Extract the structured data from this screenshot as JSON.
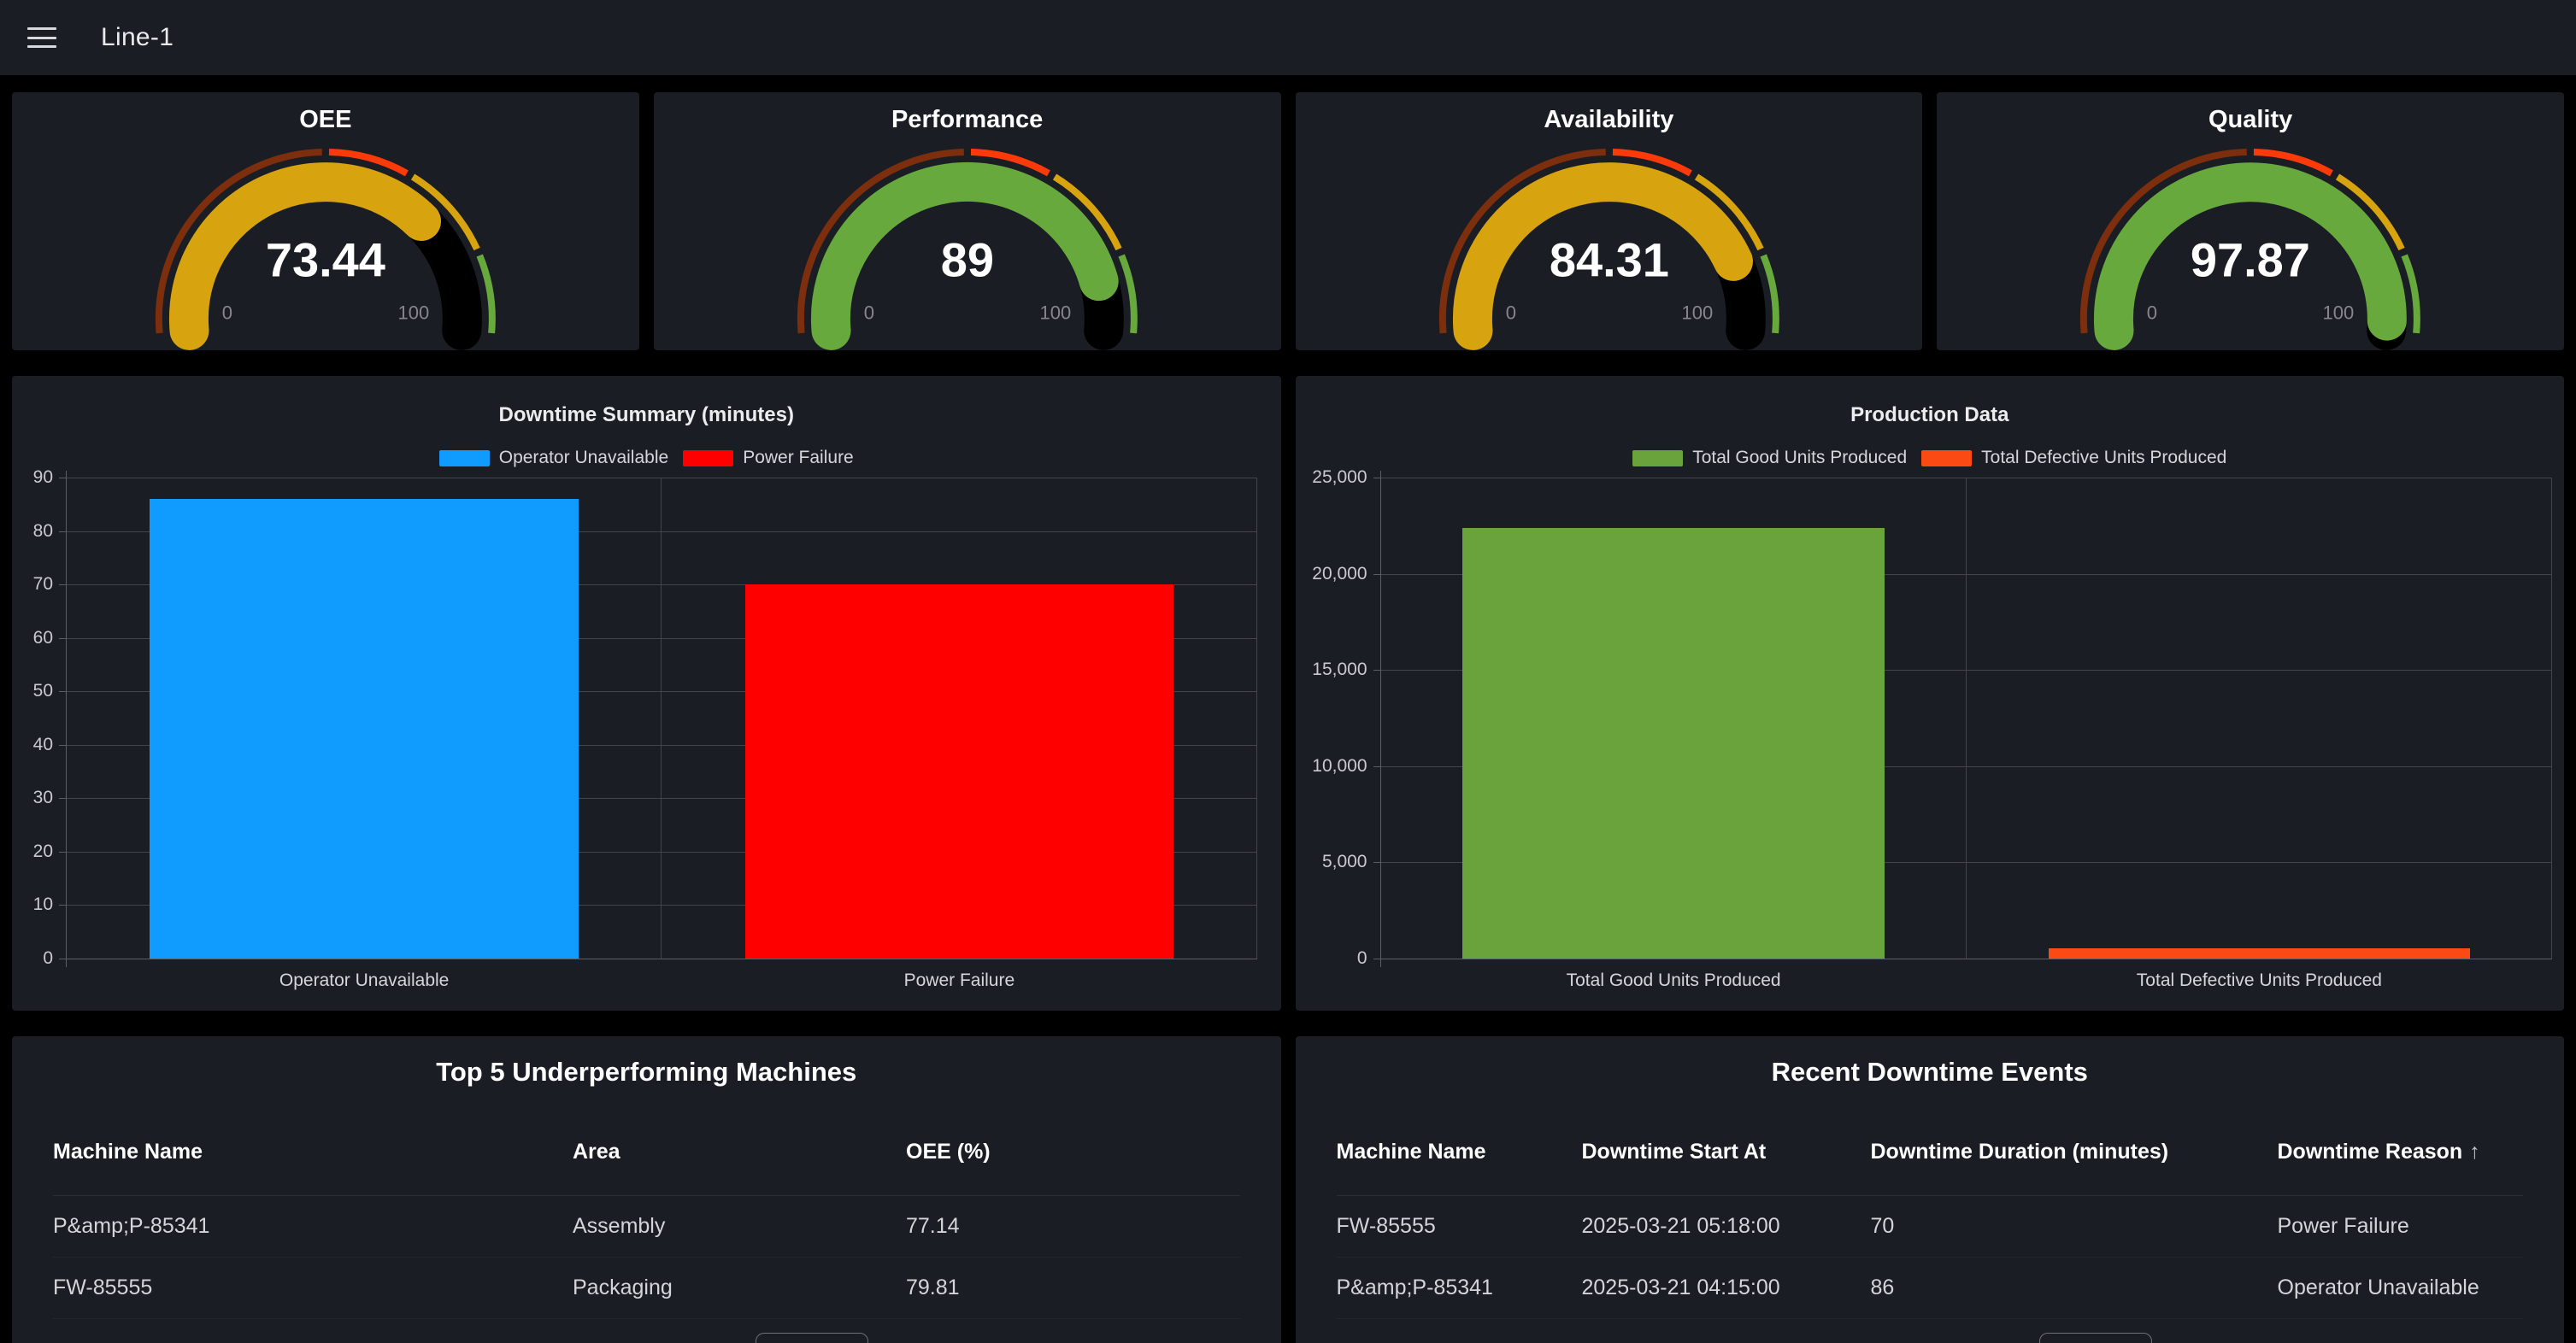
{
  "header": {
    "title": "Line-1",
    "menu_icon": "hamburger-icon"
  },
  "gauge_scale": {
    "min": 0,
    "max": 100,
    "min_label": "0",
    "max_label": "100",
    "thresholds": [
      {
        "from": 0,
        "to": 50,
        "color": "#7c2e0d"
      },
      {
        "from": 50,
        "to": 66,
        "color": "#fb3a0a"
      },
      {
        "from": 66,
        "to": 85,
        "color": "#d7a30f"
      },
      {
        "from": 85,
        "to": 100,
        "color": "#67a93c"
      }
    ]
  },
  "gauges": [
    {
      "title": "OEE",
      "value": 73.44,
      "value_display": "73.44",
      "color": "#d7a30f"
    },
    {
      "title": "Performance",
      "value": 89,
      "value_display": "89",
      "color": "#67a93c"
    },
    {
      "title": "Availability",
      "value": 84.31,
      "value_display": "84.31",
      "color": "#d7a30f"
    },
    {
      "title": "Quality",
      "value": 97.87,
      "value_display": "97.87",
      "color": "#67a93c"
    }
  ],
  "chart_data": [
    {
      "type": "bar",
      "title": "Downtime Summary (minutes)",
      "categories": [
        "Operator Unavailable",
        "Power Failure"
      ],
      "values": [
        86,
        70
      ],
      "bar_colors": [
        "#0f9bff",
        "#ff0000"
      ],
      "legend": [
        {
          "label": "Operator Unavailable",
          "color": "#0f9bff"
        },
        {
          "label": "Power Failure",
          "color": "#ff0000"
        }
      ],
      "ylim": [
        0,
        90
      ],
      "yticks": [
        0,
        10,
        20,
        30,
        40,
        50,
        60,
        70,
        80,
        90
      ],
      "ytick_labels": [
        "0",
        "10",
        "20",
        "30",
        "40",
        "50",
        "60",
        "70",
        "80",
        "90"
      ],
      "grid": true,
      "legend_position": "top"
    },
    {
      "type": "bar",
      "title": "Production Data",
      "categories": [
        "Total Good Units Produced",
        "Total Defective Units Produced"
      ],
      "values": [
        22400,
        550
      ],
      "bar_colors": [
        "#6aa33b",
        "#fb4a14"
      ],
      "legend": [
        {
          "label": "Total Good Units Produced",
          "color": "#6aa33b"
        },
        {
          "label": "Total Defective Units Produced",
          "color": "#fb4a14"
        }
      ],
      "ylim": [
        0,
        25000
      ],
      "yticks": [
        0,
        5000,
        10000,
        15000,
        20000,
        25000
      ],
      "ytick_labels": [
        "0",
        "5,000",
        "10,000",
        "15,000",
        "20,000",
        "25,000"
      ],
      "grid": true,
      "legend_position": "top"
    }
  ],
  "tables": [
    {
      "title": "Top 5 Underperforming Machines",
      "columns": [
        "Machine Name",
        "Area",
        "OEE (%)"
      ],
      "rows": [
        [
          "P&amp;P-85341",
          "Assembly",
          "77.14"
        ],
        [
          "FW-85555",
          "Packaging",
          "79.81"
        ]
      ]
    },
    {
      "title": "Recent Downtime Events",
      "columns": [
        "Machine Name",
        "Downtime Start At",
        "Downtime Duration (minutes)",
        "Downtime Reason"
      ],
      "sort_column": "Downtime Reason",
      "sort_direction": "asc",
      "sort_icon": "arrow-up-icon",
      "rows": [
        [
          "FW-85555",
          "2025-03-21 05:18:00",
          "70",
          "Power Failure"
        ],
        [
          "P&amp;P-85341",
          "2025-03-21 04:15:00",
          "86",
          "Operator Unavailable"
        ]
      ]
    }
  ]
}
